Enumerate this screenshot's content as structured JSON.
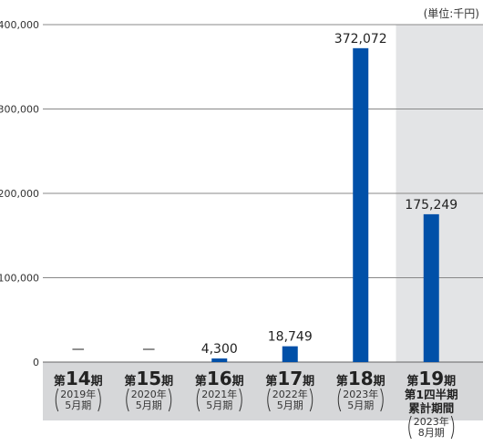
{
  "chart_data": {
    "type": "bar",
    "unit_note": "(単位:千円)",
    "yticks": [
      "400,000",
      "300,000",
      "200,000",
      "100,000",
      "0"
    ],
    "ylim": [
      0,
      400000
    ],
    "grid": true,
    "bar_color": "#0050a8",
    "highlight_color": "#e3e4e6",
    "band_color": "#d6d7d9",
    "categories": [
      {
        "prefix": "第",
        "num": "14",
        "suffix": "期",
        "extra": [],
        "date": "2019年",
        "month": "5月期",
        "value": null,
        "label": "—"
      },
      {
        "prefix": "第",
        "num": "15",
        "suffix": "期",
        "extra": [],
        "date": "2020年",
        "month": "5月期",
        "value": null,
        "label": "—"
      },
      {
        "prefix": "第",
        "num": "16",
        "suffix": "期",
        "extra": [],
        "date": "2021年",
        "month": "5月期",
        "value": 4300,
        "label": "4,300"
      },
      {
        "prefix": "第",
        "num": "17",
        "suffix": "期",
        "extra": [],
        "date": "2022年",
        "month": "5月期",
        "value": 18749,
        "label": "18,749"
      },
      {
        "prefix": "第",
        "num": "18",
        "suffix": "期",
        "extra": [],
        "date": "2023年",
        "month": "5月期",
        "value": 372072,
        "label": "372,072"
      },
      {
        "prefix": "第",
        "num": "19",
        "suffix": "期",
        "extra": [
          "第1四半期",
          "累計期間"
        ],
        "date": "2023年",
        "month": "8月期",
        "value": 175249,
        "label": "175,249"
      }
    ]
  }
}
